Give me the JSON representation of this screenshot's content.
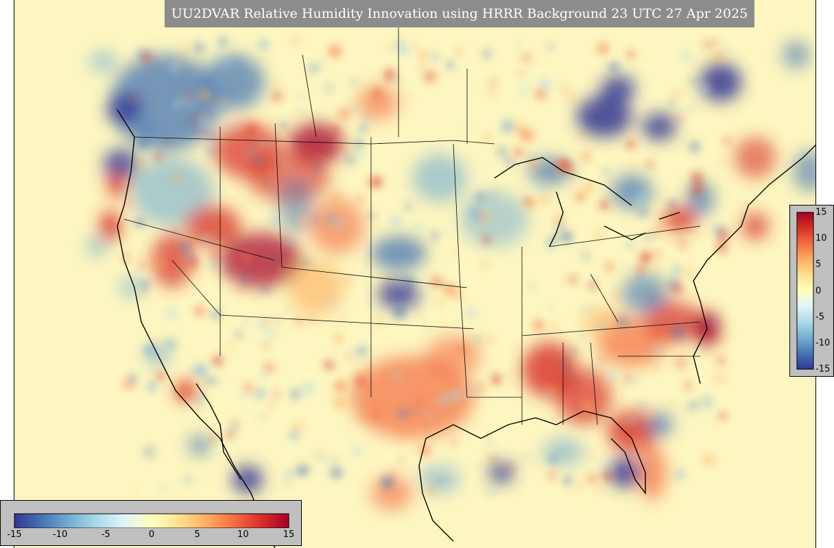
{
  "title": "UU2DVAR Relative Humidity Innovation using HRRR Background 23 UTC 27 Apr 2025",
  "colorbar": {
    "range": [
      -15,
      15
    ],
    "tick_labels": [
      "-15",
      "-10",
      "-5",
      "0",
      "5",
      "10",
      "15"
    ],
    "right_tick_labels": [
      "15",
      "10",
      "5",
      "0",
      "-5",
      "-10",
      "-15"
    ],
    "colors": [
      "#313695",
      "#4575b4",
      "#74add1",
      "#abd9e9",
      "#e0f3f8",
      "#ffffbf",
      "#fee090",
      "#fdae61",
      "#f46d43",
      "#d73027",
      "#a50026"
    ]
  },
  "map": {
    "background_color": "#fdf6c0",
    "coast_color": "#000000"
  }
}
